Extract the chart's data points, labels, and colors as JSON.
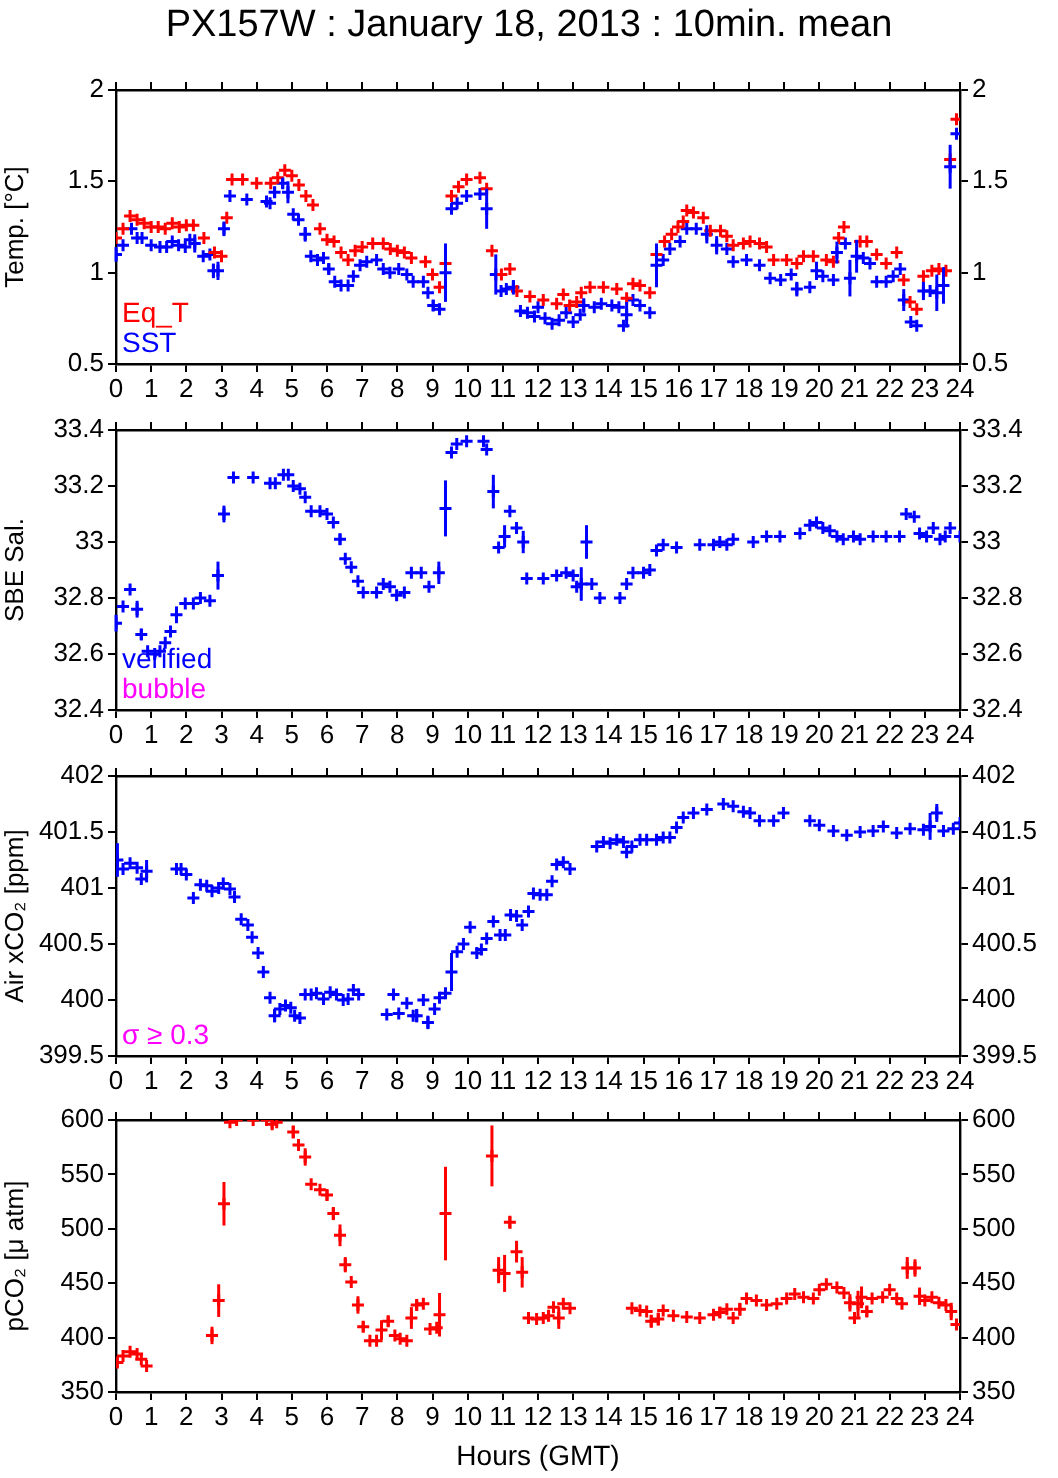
{
  "chart_data": [
    {
      "type": "scatter",
      "title": "PX157W : January 18, 2013 : 10min. mean",
      "ylabel": "Temp. [°C]",
      "marker": "cross",
      "legend": false,
      "grid": false,
      "xlim": [
        0,
        24
      ],
      "xticks": [
        0,
        1,
        2,
        3,
        4,
        5,
        6,
        7,
        8,
        9,
        10,
        11,
        12,
        13,
        14,
        15,
        16,
        17,
        18,
        19,
        20,
        21,
        22,
        23,
        24
      ],
      "ylim": [
        0.5,
        2
      ],
      "yticks": [
        0.5,
        1,
        1.5,
        2
      ],
      "y2lim": [
        0.5,
        2
      ],
      "y2ticks": [
        0.5,
        1,
        1.5,
        2
      ],
      "series": [
        {
          "name": "Eq_T",
          "color": "#ff0000",
          "x": [
            0,
            0.2,
            0.4,
            0.6,
            0.8,
            1.0,
            1.2,
            1.4,
            1.6,
            1.8,
            2.0,
            2.2,
            2.5,
            2.8,
            3.0,
            3.15,
            3.3,
            3.6,
            4.0,
            4.4,
            4.6,
            4.8,
            5.0,
            5.2,
            5.4,
            5.6,
            5.8,
            6.0,
            6.2,
            6.4,
            6.6,
            6.8,
            7.0,
            7.3,
            7.6,
            7.8,
            8.0,
            8.2,
            8.4,
            8.8,
            9.0,
            9.2,
            9.37,
            9.54,
            9.74,
            9.97,
            10.35,
            10.54,
            10.69,
            10.96,
            11.2,
            11.4,
            11.77,
            12.15,
            12.53,
            12.72,
            12.9,
            13.1,
            13.23,
            13.48,
            13.86,
            14.24,
            14.52,
            14.7,
            14.9,
            15.18,
            15.37,
            15.6,
            15.8,
            15.98,
            16.13,
            16.23,
            16.42,
            16.7,
            16.9,
            17.19,
            17.37,
            17.55,
            17.84,
            18.03,
            18.3,
            18.5,
            18.7,
            19.07,
            19.36,
            19.55,
            19.83,
            20.2,
            20.4,
            20.55,
            20.7,
            21.16,
            21.35,
            21.63,
            21.9,
            22.2,
            22.4,
            22.58,
            22.77,
            22.96,
            23.2,
            23.4,
            23.6,
            23.72,
            23.9
          ],
          "values": [
            1.19,
            1.24,
            1.31,
            1.29,
            1.27,
            1.25,
            1.25,
            1.24,
            1.27,
            1.25,
            1.26,
            1.26,
            1.19,
            1.11,
            1.09,
            1.3,
            1.51,
            1.51,
            1.49,
            1.49,
            1.52,
            1.56,
            1.53,
            1.48,
            1.42,
            1.37,
            1.24,
            1.18,
            1.17,
            1.11,
            1.07,
            1.12,
            1.14,
            1.16,
            1.16,
            1.13,
            1.12,
            1.11,
            1.08,
            1.06,
            0.99,
            0.92,
            1.05,
            1.42,
            1.47,
            1.51,
            1.52,
            1.46,
            1.12,
            0.99,
            1.02,
            0.9,
            0.87,
            0.85,
            0.83,
            0.88,
            0.82,
            0.84,
            0.89,
            0.92,
            0.92,
            0.91,
            0.86,
            0.94,
            0.93,
            0.89,
            1.1,
            1.17,
            1.21,
            1.25,
            1.28,
            1.34,
            1.33,
            1.3,
            1.23,
            1.23,
            1.2,
            1.15,
            1.16,
            1.17,
            1.16,
            1.14,
            1.07,
            1.07,
            1.05,
            1.09,
            1.09,
            1.07,
            1.06,
            1.19,
            1.25,
            1.17,
            1.17,
            1.1,
            1.05,
            1.11,
            0.96,
            0.84,
            0.8,
            0.98,
            1.01,
            1.02,
            1.01,
            1.62,
            1.84
          ]
        },
        {
          "name": "SST",
          "color": "#0000ff",
          "x": [
            0,
            0.2,
            0.44,
            0.6,
            0.74,
            1.0,
            1.25,
            1.44,
            1.6,
            1.78,
            1.97,
            2.1,
            2.24,
            2.48,
            2.67,
            2.77,
            2.9,
            3.07,
            3.24,
            3.72,
            4.28,
            4.38,
            4.51,
            4.74,
            4.89,
            5.04,
            5.19,
            5.38,
            5.54,
            5.73,
            5.9,
            6.05,
            6.22,
            6.4,
            6.6,
            6.75,
            6.94,
            7.13,
            7.41,
            7.6,
            7.79,
            8.04,
            8.27,
            8.45,
            8.74,
            8.87,
            9.02,
            9.2,
            9.37,
            9.54,
            9.7,
            9.97,
            10.35,
            10.54,
            10.8,
            10.95,
            11.1,
            11.3,
            11.5,
            11.7,
            11.9,
            12.0,
            12.2,
            12.4,
            12.6,
            12.8,
            13.0,
            13.2,
            13.3,
            13.6,
            13.8,
            14.1,
            14.3,
            14.43,
            14.52,
            14.7,
            14.9,
            15.18,
            15.37,
            15.56,
            15.75,
            16.04,
            16.23,
            16.5,
            16.8,
            17.08,
            17.37,
            17.55,
            17.93,
            18.3,
            18.6,
            18.9,
            19.2,
            19.36,
            19.73,
            19.92,
            20.1,
            20.4,
            20.5,
            20.74,
            20.87,
            21.06,
            21.25,
            21.44,
            21.63,
            21.9,
            22.1,
            22.3,
            22.4,
            22.6,
            22.77,
            22.96,
            23.15,
            23.34,
            23.53,
            23.72,
            23.9
          ],
          "values": [
            1.1,
            1.15,
            1.24,
            1.19,
            1.19,
            1.15,
            1.14,
            1.14,
            1.17,
            1.15,
            1.14,
            1.18,
            1.16,
            1.09,
            1.1,
            1.01,
            1.01,
            1.24,
            1.42,
            1.4,
            1.39,
            1.38,
            1.44,
            1.49,
            1.44,
            1.32,
            1.29,
            1.21,
            1.09,
            1.07,
            1.08,
            1.02,
            0.95,
            0.93,
            0.93,
            0.98,
            1.04,
            1.06,
            1.07,
            1.02,
            1.0,
            1.02,
            0.99,
            0.95,
            0.95,
            0.89,
            0.82,
            0.8,
            1.0,
            1.35,
            1.38,
            1.42,
            1.43,
            1.35,
            0.99,
            0.9,
            0.91,
            0.92,
            0.79,
            0.78,
            0.76,
            0.81,
            0.75,
            0.72,
            0.74,
            0.78,
            0.73,
            0.77,
            0.82,
            0.81,
            0.83,
            0.82,
            0.81,
            0.71,
            0.77,
            0.85,
            0.82,
            0.78,
            1.04,
            1.07,
            1.13,
            1.17,
            1.24,
            1.24,
            1.21,
            1.15,
            1.13,
            1.06,
            1.07,
            1.04,
            0.97,
            0.96,
            0.99,
            0.91,
            0.92,
            1.01,
            0.98,
            0.96,
            1.11,
            1.16,
            0.97,
            1.09,
            1.08,
            1.05,
            0.95,
            0.95,
            0.98,
            1.02,
            0.85,
            0.73,
            0.71,
            0.9,
            0.9,
            0.89,
            0.93,
            1.58,
            1.76
          ],
          "errors": [
            0.04,
            null,
            0.03,
            null,
            null,
            null,
            null,
            null,
            null,
            null,
            null,
            null,
            0.05,
            null,
            null,
            0.04,
            0.05,
            0.04,
            null,
            null,
            null,
            null,
            0.03,
            0.03,
            0.06,
            null,
            null,
            0.04,
            null,
            null,
            null,
            0.03,
            null,
            null,
            null,
            null,
            null,
            null,
            null,
            null,
            null,
            null,
            null,
            null,
            null,
            null,
            0.03,
            0.03,
            0.16,
            null,
            null,
            null,
            null,
            0.11,
            0.11,
            null,
            null,
            0.04,
            null,
            null,
            null,
            null,
            null,
            null,
            null,
            null,
            null,
            null,
            0.04,
            null,
            null,
            null,
            null,
            null,
            0.07,
            null,
            null,
            null,
            0.12,
            null,
            null,
            null,
            null,
            null,
            0.05,
            0.05,
            null,
            null,
            null,
            null,
            null,
            null,
            null,
            0.04,
            null,
            0.05,
            null,
            null,
            0.06,
            null,
            0.1,
            0.09,
            null,
            null,
            null,
            null,
            null,
            null,
            0.06,
            null,
            null,
            0.05,
            null,
            0.1,
            0.1,
            0.12,
            null
          ]
        }
      ]
    },
    {
      "type": "scatter",
      "ylabel": "SBE Sal.",
      "marker": "cross",
      "legend": false,
      "grid": false,
      "annotations": [
        "bubble"
      ],
      "xlim": [
        0,
        24
      ],
      "xticks": [
        0,
        1,
        2,
        3,
        4,
        5,
        6,
        7,
        8,
        9,
        10,
        11,
        12,
        13,
        14,
        15,
        16,
        17,
        18,
        19,
        20,
        21,
        22,
        23,
        24
      ],
      "ylim": [
        32.4,
        33.4
      ],
      "yticks": [
        32.4,
        32.6,
        32.8,
        33,
        33.2,
        33.4
      ],
      "y2lim": [
        32.4,
        33.4
      ],
      "y2ticks": [
        32.4,
        32.6,
        32.8,
        33,
        33.2,
        33.4
      ],
      "series": [
        {
          "name": "verified",
          "color": "#0000ff",
          "x": [
            0,
            0.2,
            0.4,
            0.6,
            0.72,
            0.9,
            1.1,
            1.25,
            1.4,
            1.55,
            1.72,
            1.97,
            2.2,
            2.4,
            2.67,
            2.9,
            3.07,
            3.34,
            3.9,
            4.38,
            4.53,
            4.76,
            4.9,
            5.04,
            5.23,
            5.38,
            5.55,
            5.8,
            6.0,
            6.18,
            6.37,
            6.52,
            6.69,
            6.88,
            7.03,
            7.41,
            7.6,
            7.79,
            7.98,
            8.2,
            8.4,
            8.68,
            8.9,
            9.18,
            9.37,
            9.54,
            9.69,
            9.97,
            10.45,
            10.54,
            10.73,
            10.88,
            11.05,
            11.2,
            11.39,
            11.58,
            11.68,
            12.15,
            12.53,
            12.8,
            13.0,
            13.1,
            13.23,
            13.38,
            13.53,
            13.76,
            14.33,
            14.52,
            14.7,
            15.0,
            15.18,
            15.37,
            15.56,
            15.94,
            16.6,
            16.99,
            17.17,
            17.37,
            17.55,
            18.12,
            18.5,
            18.88,
            19.45,
            19.73,
            19.92,
            20.1,
            20.3,
            20.5,
            20.68,
            20.97,
            21.16,
            21.53,
            21.9,
            22.28,
            22.47,
            22.7,
            22.85,
            23.05,
            23.24,
            23.43,
            23.58,
            23.72,
            24
          ],
          "values": [
            32.71,
            32.77,
            32.83,
            32.76,
            32.67,
            32.61,
            32.6,
            32.61,
            32.64,
            32.68,
            32.74,
            32.78,
            32.78,
            32.8,
            32.79,
            32.88,
            33.1,
            33.23,
            33.23,
            33.21,
            33.21,
            33.24,
            33.24,
            33.2,
            33.19,
            33.16,
            33.11,
            33.11,
            33.1,
            33.07,
            33.01,
            32.94,
            32.91,
            32.86,
            32.82,
            32.82,
            32.85,
            32.84,
            32.81,
            32.82,
            32.89,
            32.89,
            32.84,
            32.89,
            33.12,
            33.32,
            33.35,
            33.36,
            33.36,
            33.33,
            33.18,
            32.98,
            33.02,
            33.11,
            33.05,
            33.0,
            32.87,
            32.87,
            32.88,
            32.89,
            32.88,
            32.84,
            32.85,
            33.0,
            32.85,
            32.8,
            32.8,
            32.85,
            32.89,
            32.89,
            32.9,
            32.97,
            32.99,
            32.98,
            32.99,
            32.99,
            33.0,
            32.99,
            33.01,
            33.0,
            33.02,
            33.02,
            33.03,
            33.06,
            33.07,
            33.05,
            33.04,
            33.02,
            33.01,
            33.02,
            33.01,
            33.02,
            33.02,
            33.02,
            33.1,
            33.09,
            33.03,
            33.02,
            33.05,
            33.01,
            33.02,
            33.05,
            33.02
          ],
          "errors": [
            0.03,
            null,
            null,
            0.03,
            0.02,
            null,
            null,
            null,
            null,
            null,
            0.03,
            null,
            null,
            null,
            null,
            0.05,
            0.03,
            null,
            null,
            null,
            null,
            null,
            null,
            null,
            null,
            null,
            null,
            null,
            null,
            null,
            0.02,
            null,
            null,
            null,
            null,
            null,
            null,
            null,
            null,
            null,
            null,
            null,
            null,
            0.04,
            0.1,
            null,
            null,
            null,
            null,
            null,
            0.06,
            null,
            0.04,
            null,
            null,
            0.04,
            null,
            null,
            null,
            null,
            null,
            null,
            0.06,
            0.06,
            null,
            null,
            null,
            null,
            null,
            null,
            null,
            null,
            null,
            null,
            null,
            null,
            null,
            null,
            null,
            null,
            null,
            null,
            null,
            null,
            null,
            null,
            null,
            null,
            null,
            null,
            null,
            null,
            null,
            null,
            null,
            null,
            null,
            null,
            null,
            null,
            null,
            null,
            null
          ]
        }
      ]
    },
    {
      "type": "scatter",
      "ylabel": "Air xCO₂ [ppm]",
      "marker": "cross",
      "legend": false,
      "grid": false,
      "annotations": [
        "σ ≥ 0.3"
      ],
      "xlim": [
        0,
        24
      ],
      "xticks": [
        0,
        1,
        2,
        3,
        4,
        5,
        6,
        7,
        8,
        9,
        10,
        11,
        12,
        13,
        14,
        15,
        16,
        17,
        18,
        19,
        20,
        21,
        22,
        23,
        24
      ],
      "ylim": [
        399.5,
        402
      ],
      "yticks": [
        399.5,
        400,
        400.5,
        401,
        401.5,
        402
      ],
      "y2lim": [
        399.5,
        402
      ],
      "y2ticks": [
        399.5,
        400,
        400.5,
        401,
        401.5,
        402
      ],
      "series": [
        {
          "color": "#0000ff",
          "x": [
            0.04,
            0.2,
            0.4,
            0.6,
            0.72,
            0.87,
            1.72,
            1.85,
            2.0,
            2.2,
            2.4,
            2.58,
            2.73,
            2.92,
            3.05,
            3.24,
            3.37,
            3.56,
            3.75,
            3.87,
            4.04,
            4.19,
            4.38,
            4.51,
            4.66,
            4.82,
            4.97,
            5.08,
            5.23,
            5.38,
            5.55,
            5.7,
            5.9,
            6.09,
            6.27,
            6.46,
            6.6,
            6.75,
            6.9,
            7.7,
            7.89,
            8.04,
            8.27,
            8.45,
            8.55,
            8.74,
            8.87,
            9.06,
            9.2,
            9.37,
            9.54,
            9.7,
            9.88,
            10.07,
            10.26,
            10.39,
            10.54,
            10.73,
            10.92,
            11.07,
            11.22,
            11.39,
            11.55,
            11.73,
            11.87,
            12.06,
            12.25,
            12.4,
            12.53,
            12.72,
            12.91,
            13.67,
            13.86,
            14.05,
            14.24,
            14.43,
            14.52,
            14.67,
            14.9,
            15.09,
            15.37,
            15.56,
            15.75,
            15.94,
            16.13,
            16.42,
            16.8,
            17.27,
            17.55,
            17.84,
            18.03,
            18.3,
            18.7,
            18.98,
            19.73,
            20.0,
            20.4,
            20.78,
            21.16,
            21.53,
            21.82,
            22.2,
            22.58,
            22.96,
            23.15,
            23.34,
            23.53,
            23.81,
            24
          ],
          "values": [
            401.25,
            401.17,
            401.22,
            401.18,
            401.08,
            401.15,
            401.17,
            401.17,
            401.12,
            400.91,
            401.03,
            401.02,
            400.97,
            401.0,
            401.04,
            400.99,
            400.92,
            400.72,
            400.67,
            400.56,
            400.42,
            400.25,
            400.02,
            399.86,
            399.92,
            399.95,
            399.93,
            399.86,
            399.84,
            400.05,
            400.05,
            400.06,
            400.01,
            400.07,
            400.05,
            400.0,
            400.01,
            400.09,
            400.05,
            399.87,
            400.05,
            399.88,
            399.97,
            399.86,
            399.86,
            400.0,
            399.8,
            399.92,
            400.02,
            400.06,
            400.25,
            400.43,
            400.5,
            400.65,
            400.42,
            400.45,
            400.55,
            400.7,
            400.58,
            400.58,
            400.76,
            400.75,
            400.67,
            400.79,
            400.95,
            400.94,
            400.94,
            401.06,
            401.21,
            401.23,
            401.17,
            401.37,
            401.41,
            401.4,
            401.43,
            401.41,
            401.32,
            401.37,
            401.43,
            401.43,
            401.43,
            401.45,
            401.45,
            401.54,
            401.63,
            401.67,
            401.7,
            401.75,
            401.73,
            401.68,
            401.67,
            401.6,
            401.6,
            401.67,
            401.6,
            401.56,
            401.51,
            401.47,
            401.5,
            401.51,
            401.55,
            401.49,
            401.53,
            401.52,
            401.55,
            401.67,
            401.51,
            401.53,
            401.58
          ],
          "errors": [
            0.15,
            null,
            null,
            null,
            null,
            0.1,
            null,
            null,
            null,
            null,
            null,
            null,
            null,
            null,
            null,
            null,
            null,
            null,
            null,
            null,
            null,
            null,
            null,
            0.06,
            null,
            null,
            null,
            null,
            null,
            null,
            null,
            null,
            null,
            null,
            null,
            null,
            null,
            null,
            null,
            null,
            null,
            null,
            null,
            null,
            0.06,
            null,
            0.06,
            null,
            null,
            null,
            0.17,
            null,
            null,
            null,
            null,
            null,
            null,
            null,
            null,
            null,
            null,
            null,
            null,
            null,
            null,
            null,
            null,
            null,
            null,
            null,
            null,
            null,
            null,
            null,
            null,
            null,
            null,
            null,
            null,
            null,
            null,
            null,
            null,
            null,
            null,
            null,
            null,
            null,
            null,
            null,
            null,
            null,
            null,
            null,
            null,
            null,
            null,
            null,
            null,
            null,
            null,
            null,
            null,
            null,
            0.12,
            0.08,
            null,
            null,
            null
          ]
        }
      ]
    },
    {
      "type": "scatter",
      "xlabel": "Hours (GMT)",
      "ylabel": "pCO₂ [μ atm]",
      "marker": "cross",
      "legend": false,
      "grid": false,
      "xlim": [
        0,
        24
      ],
      "xticks": [
        0,
        1,
        2,
        3,
        4,
        5,
        6,
        7,
        8,
        9,
        10,
        11,
        12,
        13,
        14,
        15,
        16,
        17,
        18,
        19,
        20,
        21,
        22,
        23,
        24
      ],
      "ylim": [
        350,
        600
      ],
      "yticks": [
        350,
        400,
        450,
        500,
        550,
        600
      ],
      "y2lim": [
        350,
        600
      ],
      "y2ticks": [
        350,
        400,
        450,
        500,
        550,
        600
      ],
      "series": [
        {
          "color": "#ff0000",
          "x": [
            0.04,
            0.2,
            0.4,
            0.6,
            0.72,
            0.87,
            2.73,
            2.92,
            3.07,
            3.24,
            3.43,
            3.9,
            4.28,
            4.44,
            4.57,
            5.04,
            5.19,
            5.38,
            5.55,
            5.8,
            6.0,
            6.18,
            6.37,
            6.52,
            6.69,
            6.88,
            7.03,
            7.22,
            7.41,
            7.55,
            7.74,
            7.93,
            8.08,
            8.27,
            8.4,
            8.55,
            8.74,
            8.93,
            9.12,
            9.2,
            9.37,
            10.69,
            10.88,
            11.05,
            11.2,
            11.39,
            11.55,
            11.73,
            11.96,
            12.15,
            12.3,
            12.44,
            12.59,
            12.72,
            12.91,
            14.67,
            14.9,
            15.09,
            15.22,
            15.42,
            15.56,
            15.85,
            16.23,
            16.6,
            16.99,
            17.17,
            17.37,
            17.55,
            17.74,
            17.93,
            18.21,
            18.5,
            18.79,
            19.07,
            19.3,
            19.55,
            19.83,
            20.0,
            20.2,
            20.5,
            20.7,
            20.87,
            21.0,
            21.1,
            21.2,
            21.35,
            21.5,
            21.8,
            22.0,
            22.2,
            22.35,
            22.5,
            22.72,
            22.85,
            23.0,
            23.2,
            23.4,
            23.6,
            23.75,
            23.9
          ],
          "values": [
            377,
            383,
            387,
            385,
            380,
            374,
            402,
            434,
            523,
            598,
            600,
            600,
            600,
            596,
            598,
            589,
            577,
            566,
            541,
            536,
            531,
            514,
            494,
            467,
            451,
            430,
            410,
            397,
            397,
            407,
            415,
            402,
            399,
            397,
            418,
            430,
            431,
            408,
            409,
            421,
            514,
            567,
            462,
            459,
            506,
            479,
            460,
            418,
            417,
            418,
            420,
            428,
            418,
            431,
            427,
            427,
            425,
            424,
            415,
            417,
            425,
            420,
            419,
            418,
            421,
            423,
            426,
            418,
            426,
            436,
            434,
            430,
            431,
            436,
            440,
            437,
            436,
            444,
            449,
            446,
            441,
            432,
            418,
            431,
            437,
            424,
            436,
            437,
            444,
            436,
            431,
            464,
            464,
            438,
            434,
            437,
            432,
            430,
            424,
            412
          ],
          "errors": [
            null,
            null,
            null,
            null,
            null,
            null,
            8,
            15,
            20,
            null,
            null,
            null,
            null,
            4,
            null,
            6,
            null,
            8,
            null,
            null,
            5,
            6,
            10,
            7,
            null,
            8,
            5,
            null,
            null,
            9,
            5,
            null,
            null,
            null,
            10,
            5,
            null,
            null,
            null,
            20,
            43,
            28,
            12,
            17,
            6,
            10,
            14,
            null,
            null,
            null,
            5,
            null,
            10,
            null,
            null,
            null,
            null,
            null,
            6,
            6,
            null,
            null,
            null,
            null,
            null,
            5,
            null,
            null,
            6,
            null,
            null,
            null,
            null,
            null,
            null,
            null,
            null,
            null,
            null,
            null,
            null,
            8,
            null,
            12,
            10,
            5,
            null,
            null,
            null,
            null,
            null,
            10,
            8,
            8,
            null,
            null,
            null,
            null,
            8,
            null
          ]
        }
      ]
    }
  ]
}
